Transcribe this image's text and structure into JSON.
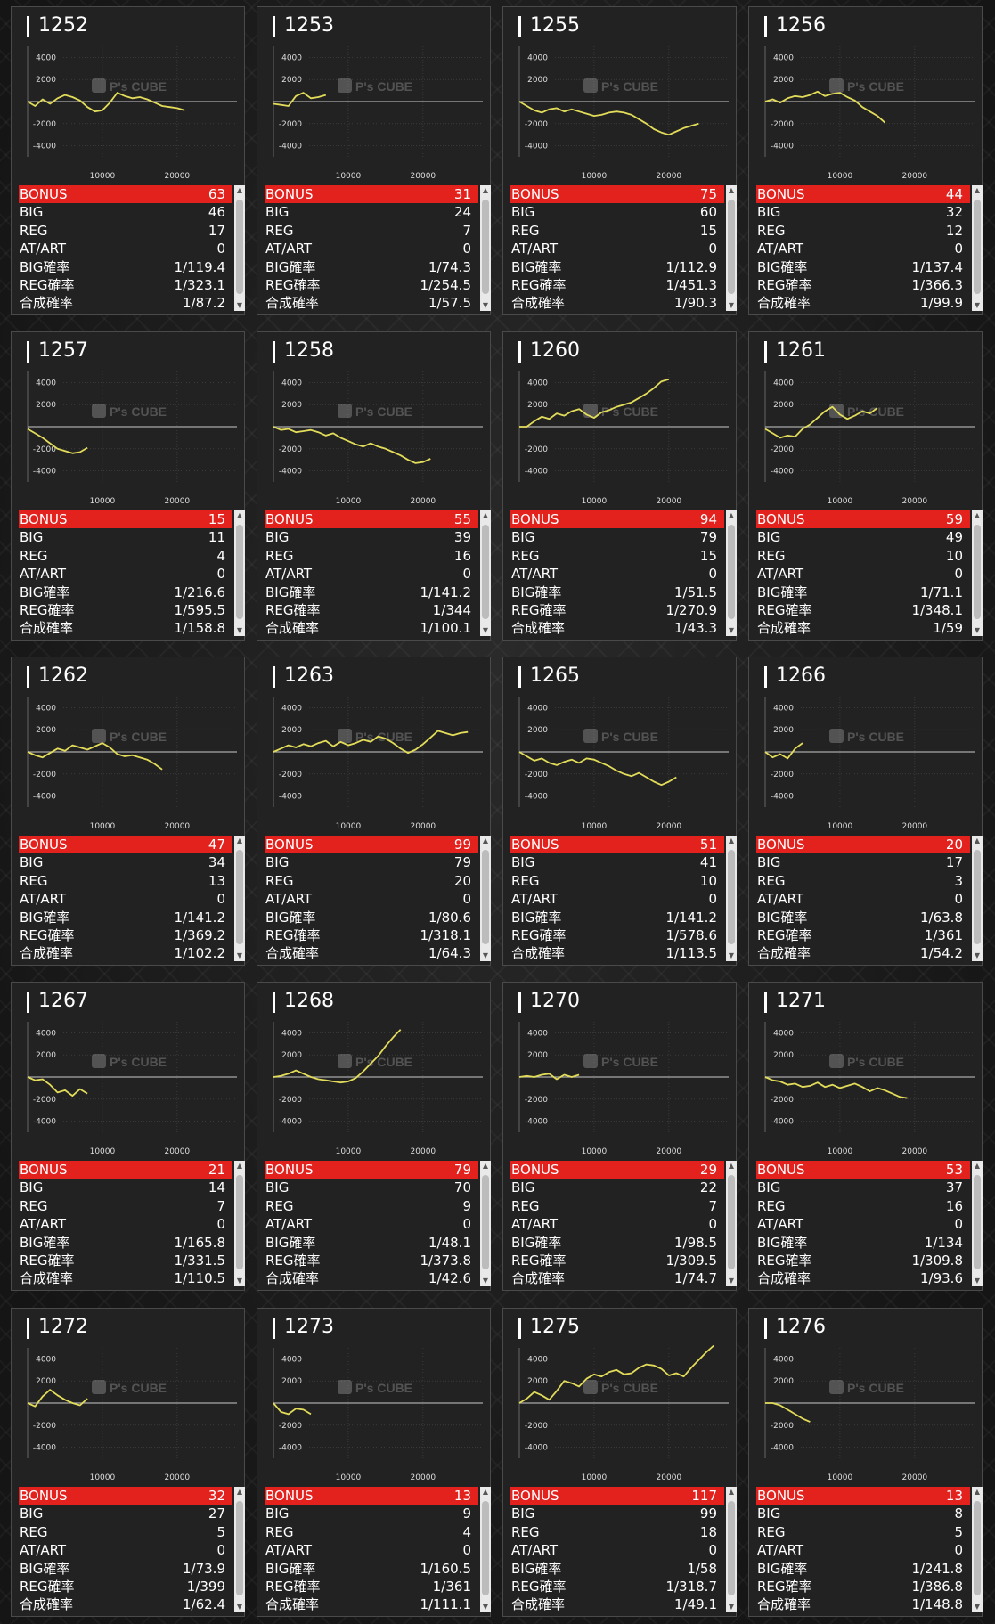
{
  "labels": {
    "bonus": "BONUS",
    "big": "BIG",
    "reg": "REG",
    "atart": "AT/ART",
    "big_rate": "BIG確率",
    "reg_rate": "REG確率",
    "total_rate": "合成確率"
  },
  "axis": {
    "y_ticks": [
      "4000",
      "2000",
      "-2000",
      "-4000"
    ],
    "x_ticks": [
      "10000",
      "20000"
    ]
  },
  "watermark": "P's CUBE",
  "colors": {
    "bonus_bar": "#e3211d",
    "line": "#e2dc5a",
    "card_bg": "#222222"
  },
  "icons": {
    "scroll_up": "scroll-up-arrow-icon",
    "scroll_down": "scroll-down-arrow-icon"
  },
  "machines": [
    {
      "id": "1252",
      "bonus": "63",
      "big": "46",
      "reg": "17",
      "atart": "0",
      "big_rate": "1/119.4",
      "reg_rate": "1/323.1",
      "total_rate": "1/87.2",
      "chart_data": {
        "type": "line",
        "xlim": [
          0,
          28000
        ],
        "ylim": [
          -5000,
          5000
        ],
        "x": [
          0,
          1000,
          2000,
          3000,
          4000,
          5000,
          6000,
          7000,
          8000,
          9000,
          10000,
          11000,
          12000,
          13000,
          14000,
          15000,
          16000,
          17000,
          18000,
          19000,
          20000,
          21000
        ],
        "y": [
          0,
          -400,
          200,
          -200,
          300,
          600,
          400,
          100,
          -500,
          -900,
          -800,
          -100,
          800,
          500,
          300,
          400,
          200,
          -100,
          -400,
          -500,
          -600,
          -800
        ]
      }
    },
    {
      "id": "1253",
      "bonus": "31",
      "big": "24",
      "reg": "7",
      "atart": "0",
      "big_rate": "1/74.3",
      "reg_rate": "1/254.5",
      "total_rate": "1/57.5",
      "chart_data": {
        "type": "line",
        "xlim": [
          0,
          28000
        ],
        "ylim": [
          -5000,
          5000
        ],
        "x": [
          0,
          1000,
          2000,
          3000,
          4000,
          5000,
          6000,
          7000
        ],
        "y": [
          -200,
          -300,
          -400,
          500,
          800,
          300,
          400,
          600
        ]
      }
    },
    {
      "id": "1255",
      "bonus": "75",
      "big": "60",
      "reg": "15",
      "atart": "0",
      "big_rate": "1/112.9",
      "reg_rate": "1/451.3",
      "total_rate": "1/90.3",
      "chart_data": {
        "type": "line",
        "xlim": [
          0,
          28000
        ],
        "ylim": [
          -5000,
          5000
        ],
        "x": [
          0,
          1000,
          2000,
          3000,
          4000,
          5000,
          6000,
          7000,
          8000,
          9000,
          10000,
          11000,
          12000,
          13000,
          14000,
          15000,
          16000,
          17000,
          18000,
          19000,
          20000,
          21000,
          22000,
          23000,
          24000
        ],
        "y": [
          0,
          -400,
          -800,
          -1000,
          -700,
          -600,
          -900,
          -700,
          -900,
          -1100,
          -1300,
          -1200,
          -1000,
          -900,
          -1000,
          -1200,
          -1600,
          -2000,
          -2500,
          -2800,
          -3000,
          -2700,
          -2400,
          -2200,
          -2000
        ]
      }
    },
    {
      "id": "1256",
      "bonus": "44",
      "big": "32",
      "reg": "12",
      "atart": "0",
      "big_rate": "1/137.4",
      "reg_rate": "1/366.3",
      "total_rate": "1/99.9",
      "chart_data": {
        "type": "line",
        "xlim": [
          0,
          28000
        ],
        "ylim": [
          -5000,
          5000
        ],
        "x": [
          0,
          1000,
          2000,
          3000,
          4000,
          5000,
          6000,
          7000,
          8000,
          9000,
          10000,
          11000,
          12000,
          13000,
          14000,
          15000,
          16000
        ],
        "y": [
          0,
          200,
          -100,
          300,
          500,
          400,
          600,
          900,
          500,
          700,
          800,
          400,
          100,
          -500,
          -900,
          -1300,
          -1900
        ]
      }
    },
    {
      "id": "1257",
      "bonus": "15",
      "big": "11",
      "reg": "4",
      "atart": "0",
      "big_rate": "1/216.6",
      "reg_rate": "1/595.5",
      "total_rate": "1/158.8",
      "chart_data": {
        "type": "line",
        "xlim": [
          0,
          28000
        ],
        "ylim": [
          -5000,
          5000
        ],
        "x": [
          0,
          1000,
          2000,
          3000,
          4000,
          5000,
          6000,
          7000,
          8000
        ],
        "y": [
          -200,
          -600,
          -1000,
          -1500,
          -2000,
          -2200,
          -2400,
          -2300,
          -1900
        ]
      }
    },
    {
      "id": "1258",
      "bonus": "55",
      "big": "39",
      "reg": "16",
      "atart": "0",
      "big_rate": "1/141.2",
      "reg_rate": "1/344",
      "total_rate": "1/100.1",
      "chart_data": {
        "type": "line",
        "xlim": [
          0,
          28000
        ],
        "ylim": [
          -5000,
          5000
        ],
        "x": [
          0,
          1000,
          2000,
          3000,
          4000,
          5000,
          6000,
          7000,
          8000,
          9000,
          10000,
          11000,
          12000,
          13000,
          14000,
          15000,
          16000,
          17000,
          18000,
          19000,
          20000,
          21000
        ],
        "y": [
          0,
          -300,
          -200,
          -500,
          -400,
          -300,
          -500,
          -800,
          -600,
          -1000,
          -1300,
          -1600,
          -1800,
          -1500,
          -1800,
          -2000,
          -2300,
          -2600,
          -3000,
          -3300,
          -3200,
          -2900
        ]
      }
    },
    {
      "id": "1260",
      "bonus": "94",
      "big": "79",
      "reg": "15",
      "atart": "0",
      "big_rate": "1/51.5",
      "reg_rate": "1/270.9",
      "total_rate": "1/43.3",
      "chart_data": {
        "type": "line",
        "xlim": [
          0,
          28000
        ],
        "ylim": [
          -5000,
          5000
        ],
        "x": [
          0,
          1000,
          2000,
          3000,
          4000,
          5000,
          6000,
          7000,
          8000,
          9000,
          10000,
          11000,
          12000,
          13000,
          14000,
          15000,
          16000,
          17000,
          18000,
          19000,
          20000
        ],
        "y": [
          0,
          0,
          500,
          900,
          700,
          1200,
          1000,
          1400,
          1600,
          1100,
          800,
          1300,
          1500,
          1800,
          2000,
          2200,
          2600,
          3000,
          3500,
          4100,
          4300
        ]
      }
    },
    {
      "id": "1261",
      "bonus": "59",
      "big": "49",
      "reg": "10",
      "atart": "0",
      "big_rate": "1/71.1",
      "reg_rate": "1/348.1",
      "total_rate": "1/59",
      "chart_data": {
        "type": "line",
        "xlim": [
          0,
          28000
        ],
        "ylim": [
          -5000,
          5000
        ],
        "x": [
          0,
          1000,
          2000,
          3000,
          4000,
          5000,
          6000,
          7000,
          8000,
          9000,
          10000,
          11000,
          12000,
          13000,
          14000,
          15000
        ],
        "y": [
          -200,
          -600,
          -1000,
          -800,
          -900,
          -200,
          200,
          800,
          1400,
          1800,
          1100,
          700,
          1000,
          1400,
          1200,
          1700
        ]
      }
    },
    {
      "id": "1262",
      "bonus": "47",
      "big": "34",
      "reg": "13",
      "atart": "0",
      "big_rate": "1/141.2",
      "reg_rate": "1/369.2",
      "total_rate": "1/102.2",
      "chart_data": {
        "type": "line",
        "xlim": [
          0,
          28000
        ],
        "ylim": [
          -5000,
          5000
        ],
        "x": [
          0,
          1000,
          2000,
          3000,
          4000,
          5000,
          6000,
          7000,
          8000,
          9000,
          10000,
          11000,
          12000,
          13000,
          14000,
          15000,
          16000,
          17000,
          18000
        ],
        "y": [
          0,
          -300,
          -500,
          -100,
          300,
          100,
          600,
          400,
          200,
          500,
          800,
          400,
          -200,
          -400,
          -300,
          -500,
          -700,
          -1100,
          -1600
        ]
      }
    },
    {
      "id": "1263",
      "bonus": "99",
      "big": "79",
      "reg": "20",
      "atart": "0",
      "big_rate": "1/80.6",
      "reg_rate": "1/318.1",
      "total_rate": "1/64.3",
      "chart_data": {
        "type": "line",
        "xlim": [
          0,
          28000
        ],
        "ylim": [
          -5000,
          5000
        ],
        "x": [
          0,
          1000,
          2000,
          3000,
          4000,
          5000,
          6000,
          7000,
          8000,
          9000,
          10000,
          11000,
          12000,
          13000,
          14000,
          15000,
          16000,
          17000,
          18000,
          19000,
          20000,
          21000,
          22000,
          23000,
          24000,
          25000,
          26000
        ],
        "y": [
          0,
          300,
          600,
          400,
          700,
          500,
          800,
          1000,
          500,
          900,
          600,
          800,
          1100,
          900,
          1400,
          1200,
          800,
          300,
          -100,
          200,
          700,
          1300,
          1900,
          1700,
          1500,
          1700,
          1800
        ]
      }
    },
    {
      "id": "1265",
      "bonus": "51",
      "big": "41",
      "reg": "10",
      "atart": "0",
      "big_rate": "1/141.2",
      "reg_rate": "1/578.6",
      "total_rate": "1/113.5",
      "chart_data": {
        "type": "line",
        "xlim": [
          0,
          28000
        ],
        "ylim": [
          -5000,
          5000
        ],
        "x": [
          0,
          1000,
          2000,
          3000,
          4000,
          5000,
          6000,
          7000,
          8000,
          9000,
          10000,
          11000,
          12000,
          13000,
          14000,
          15000,
          16000,
          17000,
          18000,
          19000,
          20000,
          21000
        ],
        "y": [
          0,
          -400,
          -800,
          -600,
          -1000,
          -1200,
          -900,
          -700,
          -1000,
          -600,
          -700,
          -1000,
          -1300,
          -1700,
          -2000,
          -2200,
          -1900,
          -2300,
          -2700,
          -3000,
          -2700,
          -2300
        ]
      }
    },
    {
      "id": "1266",
      "bonus": "20",
      "big": "17",
      "reg": "3",
      "atart": "0",
      "big_rate": "1/63.8",
      "reg_rate": "1/361",
      "total_rate": "1/54.2",
      "chart_data": {
        "type": "line",
        "xlim": [
          0,
          28000
        ],
        "ylim": [
          -5000,
          5000
        ],
        "x": [
          0,
          1000,
          2000,
          3000,
          4000,
          5000
        ],
        "y": [
          0,
          -500,
          -200,
          -600,
          300,
          800
        ]
      }
    },
    {
      "id": "1267",
      "bonus": "21",
      "big": "14",
      "reg": "7",
      "atart": "0",
      "big_rate": "1/165.8",
      "reg_rate": "1/331.5",
      "total_rate": "1/110.5",
      "chart_data": {
        "type": "line",
        "xlim": [
          0,
          28000
        ],
        "ylim": [
          -5000,
          5000
        ],
        "x": [
          0,
          1000,
          2000,
          3000,
          4000,
          5000,
          6000,
          7000,
          8000
        ],
        "y": [
          0,
          -300,
          -200,
          -700,
          -1400,
          -1200,
          -1700,
          -1100,
          -1500
        ]
      }
    },
    {
      "id": "1268",
      "bonus": "79",
      "big": "70",
      "reg": "9",
      "atart": "0",
      "big_rate": "1/48.1",
      "reg_rate": "1/373.8",
      "total_rate": "1/42.6",
      "chart_data": {
        "type": "line",
        "xlim": [
          0,
          28000
        ],
        "ylim": [
          -5000,
          5000
        ],
        "x": [
          0,
          1000,
          2000,
          3000,
          4000,
          5000,
          6000,
          7000,
          8000,
          9000,
          10000,
          11000,
          12000,
          13000,
          14000,
          15000,
          16000,
          17000
        ],
        "y": [
          0,
          100,
          300,
          600,
          300,
          0,
          -200,
          -300,
          -400,
          -500,
          -400,
          -100,
          500,
          1200,
          1900,
          2800,
          3600,
          4300
        ]
      }
    },
    {
      "id": "1270",
      "bonus": "29",
      "big": "22",
      "reg": "7",
      "atart": "0",
      "big_rate": "1/98.5",
      "reg_rate": "1/309.5",
      "total_rate": "1/74.7",
      "chart_data": {
        "type": "line",
        "xlim": [
          0,
          28000
        ],
        "ylim": [
          -5000,
          5000
        ],
        "x": [
          0,
          1000,
          2000,
          3000,
          4000,
          5000,
          6000,
          7000,
          8000
        ],
        "y": [
          0,
          100,
          0,
          200,
          300,
          -200,
          200,
          0,
          200
        ]
      }
    },
    {
      "id": "1271",
      "bonus": "53",
      "big": "37",
      "reg": "16",
      "atart": "0",
      "big_rate": "1/134",
      "reg_rate": "1/309.8",
      "total_rate": "1/93.6",
      "chart_data": {
        "type": "line",
        "xlim": [
          0,
          28000
        ],
        "ylim": [
          -5000,
          5000
        ],
        "x": [
          0,
          1000,
          2000,
          3000,
          4000,
          5000,
          6000,
          7000,
          8000,
          9000,
          10000,
          11000,
          12000,
          13000,
          14000,
          15000,
          16000,
          17000,
          18000,
          19000
        ],
        "y": [
          0,
          -300,
          -400,
          -700,
          -600,
          -900,
          -800,
          -500,
          -900,
          -700,
          -1000,
          -800,
          -600,
          -900,
          -1300,
          -1000,
          -1200,
          -1500,
          -1800,
          -1900
        ]
      }
    },
    {
      "id": "1272",
      "bonus": "32",
      "big": "27",
      "reg": "5",
      "atart": "0",
      "big_rate": "1/73.9",
      "reg_rate": "1/399",
      "total_rate": "1/62.4",
      "chart_data": {
        "type": "line",
        "xlim": [
          0,
          28000
        ],
        "ylim": [
          -5000,
          5000
        ],
        "x": [
          0,
          1000,
          2000,
          3000,
          4000,
          5000,
          6000,
          7000,
          8000
        ],
        "y": [
          0,
          -300,
          600,
          1200,
          700,
          300,
          0,
          -200,
          400
        ]
      }
    },
    {
      "id": "1273",
      "bonus": "13",
      "big": "9",
      "reg": "4",
      "atart": "0",
      "big_rate": "1/160.5",
      "reg_rate": "1/361",
      "total_rate": "1/111.1",
      "chart_data": {
        "type": "line",
        "xlim": [
          0,
          28000
        ],
        "ylim": [
          -5000,
          5000
        ],
        "x": [
          0,
          1000,
          2000,
          3000,
          4000,
          5000
        ],
        "y": [
          0,
          -800,
          -1000,
          -500,
          -600,
          -1000
        ]
      }
    },
    {
      "id": "1275",
      "bonus": "117",
      "big": "99",
      "reg": "18",
      "atart": "0",
      "big_rate": "1/58",
      "reg_rate": "1/318.7",
      "total_rate": "1/49.1",
      "chart_data": {
        "type": "line",
        "xlim": [
          0,
          28000
        ],
        "ylim": [
          -5000,
          5000
        ],
        "x": [
          0,
          1000,
          2000,
          3000,
          4000,
          5000,
          6000,
          7000,
          8000,
          9000,
          10000,
          11000,
          12000,
          13000,
          14000,
          15000,
          16000,
          17000,
          18000,
          19000,
          20000,
          21000,
          22000,
          23000,
          24000,
          25000,
          26000
        ],
        "y": [
          0,
          400,
          1000,
          700,
          300,
          1100,
          2000,
          1800,
          1500,
          2200,
          2600,
          2400,
          2800,
          3000,
          2600,
          2700,
          3200,
          3500,
          3400,
          3100,
          2500,
          2700,
          2400,
          3200,
          3900,
          4600,
          5200
        ]
      }
    },
    {
      "id": "1276",
      "bonus": "13",
      "big": "8",
      "reg": "5",
      "atart": "0",
      "big_rate": "1/241.8",
      "reg_rate": "1/386.8",
      "total_rate": "1/148.8",
      "chart_data": {
        "type": "line",
        "xlim": [
          0,
          28000
        ],
        "ylim": [
          -5000,
          5000
        ],
        "x": [
          0,
          1000,
          2000,
          3000,
          4000,
          5000,
          6000
        ],
        "y": [
          0,
          0,
          -200,
          -600,
          -1000,
          -1400,
          -1700
        ]
      }
    }
  ]
}
